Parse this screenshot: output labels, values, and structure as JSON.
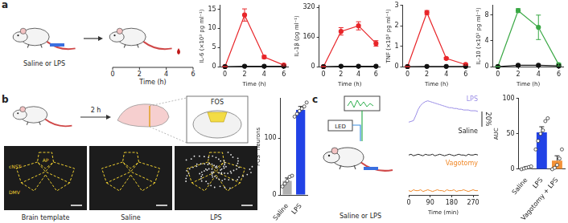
{
  "panel_labels": [
    "a",
    "b",
    "c"
  ],
  "illustrations": {
    "a": {
      "caption": "Saline or LPS",
      "timeline": {
        "ticks": [
          0,
          2,
          4,
          6
        ],
        "label": "Time (h)"
      }
    },
    "b": {
      "arrow": "2 h",
      "box": "FOS",
      "regions": [
        "cNST",
        "AP",
        "DMV"
      ],
      "images": [
        "Brain template",
        "Saline",
        "LPS"
      ]
    },
    "c": {
      "caption": "Saline or LPS",
      "source": "LED"
    }
  },
  "chart_data": [
    {
      "type": "line",
      "y_label": "IL-6 (×10³ pg ml⁻¹)",
      "x_label": "Time (h)",
      "x": [
        0,
        2,
        4,
        6
      ],
      "xlim": [
        -0.5,
        6.5
      ],
      "xticks": [
        0,
        2,
        4,
        6
      ],
      "ylim": [
        0,
        16
      ],
      "yticks": [
        0,
        5,
        10,
        15
      ],
      "grid": false,
      "series": [
        {
          "color": "#111111",
          "marker": "circle",
          "values": [
            0,
            0.1,
            0.1,
            0.1
          ]
        },
        {
          "color": "#e8262a",
          "marker": "circle",
          "values": [
            0,
            13.5,
            2.5,
            0.4
          ],
          "errors": [
            0,
            1.6,
            0.4,
            0.2
          ]
        }
      ]
    },
    {
      "type": "line",
      "y_label": "IL-1β (pg ml⁻¹)",
      "x_label": "Time (h)",
      "x": [
        0,
        2,
        4,
        6
      ],
      "xlim": [
        -0.5,
        6.5
      ],
      "xticks": [
        0,
        2,
        4,
        6
      ],
      "ylim": [
        0,
        330
      ],
      "yticks": [
        0,
        160,
        320
      ],
      "grid": false,
      "series": [
        {
          "color": "#111111",
          "marker": "circle",
          "values": [
            0,
            2,
            2,
            2
          ]
        },
        {
          "color": "#e8262a",
          "marker": "circle",
          "values": [
            0,
            190,
            220,
            125
          ],
          "errors": [
            0,
            20,
            22,
            15
          ]
        }
      ]
    },
    {
      "type": "line",
      "y_label": "TNF (×10² pg ml⁻¹)",
      "x_label": "Time (h)",
      "x": [
        0,
        2,
        4,
        6
      ],
      "xlim": [
        -0.5,
        6.5
      ],
      "xticks": [
        0,
        2,
        4,
        6
      ],
      "ylim": [
        0,
        3
      ],
      "yticks": [
        0,
        1,
        2,
        3
      ],
      "grid": false,
      "series": [
        {
          "color": "#111111",
          "marker": "circle",
          "values": [
            0,
            0.01,
            0.01,
            0.01
          ]
        },
        {
          "color": "#e8262a",
          "marker": "circle",
          "values": [
            0,
            2.65,
            0.4,
            0.1
          ],
          "errors": [
            0,
            0.1,
            0.05,
            0.03
          ]
        }
      ]
    },
    {
      "type": "line",
      "y_label": "IL-10 (×10² pg ml⁻¹)",
      "x_label": "Time (h)",
      "x": [
        0,
        2,
        4,
        6
      ],
      "xlim": [
        -0.5,
        6.5
      ],
      "xticks": [
        0,
        2,
        4,
        6
      ],
      "ylim": [
        0,
        9.5
      ],
      "yticks": [
        0,
        4,
        8
      ],
      "grid": false,
      "series": [
        {
          "color": "#111111",
          "marker": "circle",
          "values": [
            0,
            0.2,
            0.2,
            0.1
          ]
        },
        {
          "color": "#3aa845",
          "marker": "circle",
          "values": [
            0,
            8.7,
            6.1,
            0.3
          ],
          "errors": [
            0,
            0.3,
            1.9,
            0.2
          ]
        }
      ]
    },
    {
      "type": "bar",
      "y_label": "FOS⁺ neurons",
      "categories": [
        "Saline",
        "LPS"
      ],
      "values": [
        25,
        150
      ],
      "colors": [
        "#b0b0b0",
        "#2142e6"
      ],
      "errors": [
        5,
        6
      ],
      "points": [
        [
          15,
          20,
          25,
          32,
          34
        ],
        [
          138,
          143,
          148,
          152,
          156,
          163
        ]
      ],
      "ylim": [
        0,
        170
      ],
      "yticks": [
        0,
        100
      ],
      "grid": false
    },
    {
      "type": "line",
      "x_label": "Time (min)",
      "x": [
        0,
        10,
        20,
        30,
        40,
        50,
        60,
        70,
        80,
        90,
        100,
        110,
        120,
        130,
        140,
        150,
        160,
        170,
        180,
        190,
        200,
        210,
        220,
        230,
        240,
        250,
        260,
        270,
        280,
        290
      ],
      "xlim": [
        0,
        290
      ],
      "xticks": [
        0,
        90,
        180,
        270
      ],
      "ylim": [
        -5,
        35
      ],
      "tick_labels": "x",
      "grid": false,
      "scale_bar": {
        "value": 20,
        "label": "20%"
      },
      "series": [
        {
          "name": "LPS",
          "color": "#9a8de6",
          "values": [
            1,
            2,
            3,
            10,
            18,
            23,
            26,
            28,
            29,
            28,
            27,
            26,
            25,
            24,
            23,
            22,
            21,
            20,
            20,
            19,
            19,
            18,
            18,
            17,
            17,
            17,
            16,
            16,
            16,
            15
          ]
        },
        {
          "name": "Saline",
          "color": "#222222",
          "values": [
            0,
            1,
            -1,
            0,
            1,
            0,
            -1,
            1,
            0,
            0,
            1,
            -1,
            0,
            1,
            0,
            -1,
            0,
            1,
            0,
            -1,
            0,
            1,
            0,
            0,
            -1,
            1,
            0,
            0,
            1,
            0
          ]
        },
        {
          "name": "Vagotomy",
          "color": "#f0892a",
          "values": [
            0,
            -1,
            1,
            0,
            0,
            1,
            -1,
            0,
            1,
            0,
            -1,
            0,
            1,
            0,
            0,
            -1,
            1,
            0,
            0,
            1,
            -1,
            0,
            0,
            1,
            0,
            -1,
            0,
            1,
            0,
            0
          ]
        }
      ]
    },
    {
      "type": "bar",
      "y_label": "AUC",
      "categories": [
        "Saline",
        "LPS",
        "Vagotomy + LPS"
      ],
      "values": [
        2,
        52,
        12
      ],
      "colors": [
        "#b0b0b0",
        "#2142e6",
        "#f39237"
      ],
      "errors": [
        1.5,
        8,
        7
      ],
      "points": [
        [
          0,
          1,
          2,
          3,
          4
        ],
        [
          28,
          40,
          50,
          55,
          68,
          72
        ],
        [
          0,
          2,
          6,
          15,
          28
        ]
      ],
      "ylim": [
        0,
        100
      ],
      "yticks": [
        0,
        50,
        100
      ],
      "grid": false
    }
  ]
}
